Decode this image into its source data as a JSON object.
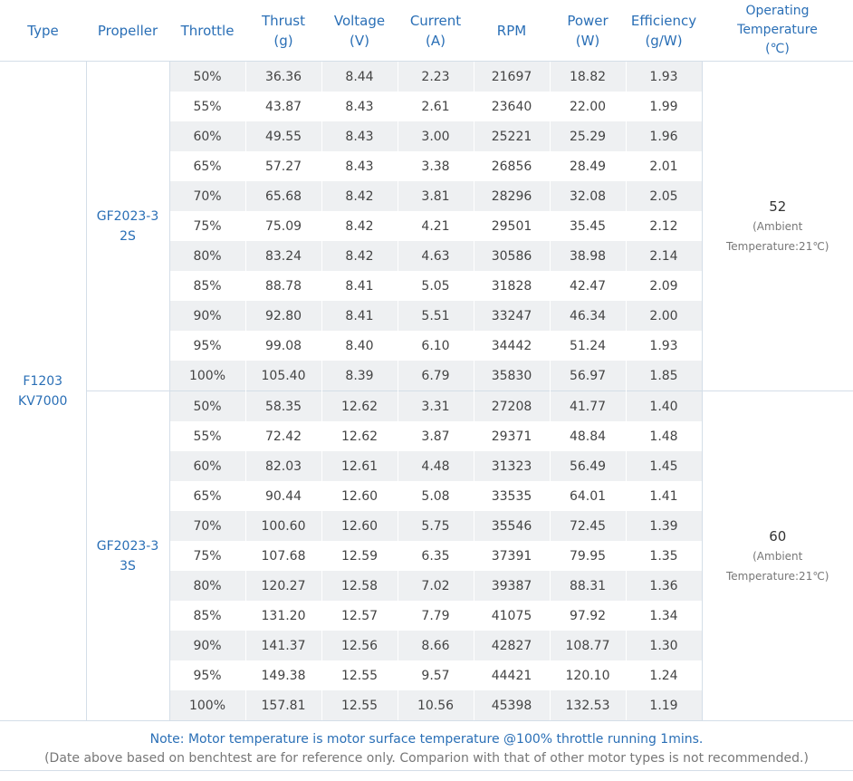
{
  "headers": {
    "type": "Type",
    "propeller": "Propeller",
    "throttle": "Throttle",
    "thrust": [
      "Thrust",
      "(g)"
    ],
    "voltage": [
      "Voltage",
      "(V)"
    ],
    "current": [
      "Current",
      "(A)"
    ],
    "rpm": "RPM",
    "power": [
      "Power",
      "(W)"
    ],
    "efficiency": [
      "Efficiency",
      "(g/W)"
    ],
    "temperature": [
      "Operating",
      "Temperature",
      "(℃)"
    ]
  },
  "motor": [
    "F1203",
    "KV7000"
  ],
  "groups": [
    {
      "propeller": [
        "GF2023-3",
        "2S"
      ],
      "temp": "52",
      "temp_note": [
        "(Ambient",
        "Temperature:21℃)"
      ],
      "rows": [
        [
          "50%",
          "36.36",
          "8.44",
          "2.23",
          "21697",
          "18.82",
          "1.93"
        ],
        [
          "55%",
          "43.87",
          "8.43",
          "2.61",
          "23640",
          "22.00",
          "1.99"
        ],
        [
          "60%",
          "49.55",
          "8.43",
          "3.00",
          "25221",
          "25.29",
          "1.96"
        ],
        [
          "65%",
          "57.27",
          "8.43",
          "3.38",
          "26856",
          "28.49",
          "2.01"
        ],
        [
          "70%",
          "65.68",
          "8.42",
          "3.81",
          "28296",
          "32.08",
          "2.05"
        ],
        [
          "75%",
          "75.09",
          "8.42",
          "4.21",
          "29501",
          "35.45",
          "2.12"
        ],
        [
          "80%",
          "83.24",
          "8.42",
          "4.63",
          "30586",
          "38.98",
          "2.14"
        ],
        [
          "85%",
          "88.78",
          "8.41",
          "5.05",
          "31828",
          "42.47",
          "2.09"
        ],
        [
          "90%",
          "92.80",
          "8.41",
          "5.51",
          "33247",
          "46.34",
          "2.00"
        ],
        [
          "95%",
          "99.08",
          "8.40",
          "6.10",
          "34442",
          "51.24",
          "1.93"
        ],
        [
          "100%",
          "105.40",
          "8.39",
          "6.79",
          "35830",
          "56.97",
          "1.85"
        ]
      ]
    },
    {
      "propeller": [
        "GF2023-3",
        "3S"
      ],
      "temp": "60",
      "temp_note": [
        "(Ambient",
        "Temperature:21℃)"
      ],
      "rows": [
        [
          "50%",
          "58.35",
          "12.62",
          "3.31",
          "27208",
          "41.77",
          "1.40"
        ],
        [
          "55%",
          "72.42",
          "12.62",
          "3.87",
          "29371",
          "48.84",
          "1.48"
        ],
        [
          "60%",
          "82.03",
          "12.61",
          "4.48",
          "31323",
          "56.49",
          "1.45"
        ],
        [
          "65%",
          "90.44",
          "12.60",
          "5.08",
          "33535",
          "64.01",
          "1.41"
        ],
        [
          "70%",
          "100.60",
          "12.60",
          "5.75",
          "35546",
          "72.45",
          "1.39"
        ],
        [
          "75%",
          "107.68",
          "12.59",
          "6.35",
          "37391",
          "79.95",
          "1.35"
        ],
        [
          "80%",
          "120.27",
          "12.58",
          "7.02",
          "39387",
          "88.31",
          "1.36"
        ],
        [
          "85%",
          "131.20",
          "12.57",
          "7.79",
          "41075",
          "97.92",
          "1.34"
        ],
        [
          "90%",
          "141.37",
          "12.56",
          "8.66",
          "42827",
          "108.77",
          "1.30"
        ],
        [
          "95%",
          "149.38",
          "12.55",
          "9.57",
          "44421",
          "120.10",
          "1.24"
        ],
        [
          "100%",
          "157.81",
          "12.55",
          "10.56",
          "45398",
          "132.53",
          "1.19"
        ]
      ]
    }
  ],
  "notes": {
    "note1": "Note: Motor temperature is motor surface temperature @100% throttle running 1mins.",
    "note2": "(Date above based on benchtest are for reference only. Comparion with that of other motor types is not recommended.)"
  }
}
